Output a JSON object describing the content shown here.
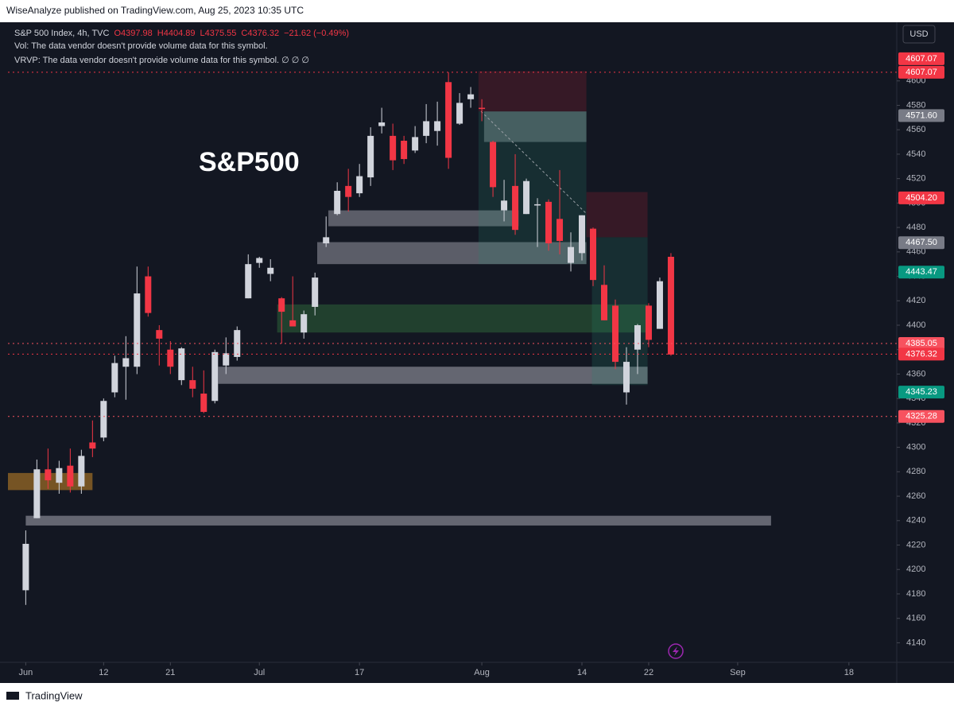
{
  "header": {
    "publisher": "WiseAnalyze published on TradingView.com, Aug 25, 2023 10:35 UTC"
  },
  "footer": {
    "brand": "TradingView"
  },
  "chart_data": {
    "type": "candlestick",
    "symbol": "S&P 500 Index, 4h, TVC",
    "ohlc_legend": [
      "O4397.98",
      "H4404.89",
      "L4375.55",
      "C4376.32",
      "−21.62 (−0.49%)"
    ],
    "info_lines": [
      "Vol: The data vendor doesn't provide volume data for this symbol.",
      "VRVP: The data vendor doesn't provide volume data for this symbol.  ∅  ∅  ∅"
    ],
    "annotation": "S&P500",
    "currency": "USD",
    "up_color": "#d1d4dc",
    "down_color": "#f23645",
    "x": [
      0,
      1,
      2,
      3,
      4,
      5,
      6,
      7,
      8,
      9,
      10,
      11,
      12,
      13,
      14,
      15,
      16,
      17,
      18,
      19,
      20,
      21,
      22,
      23,
      24,
      25,
      26,
      27,
      28,
      29,
      30,
      31,
      32,
      33,
      34,
      35,
      36,
      37,
      38,
      39,
      40,
      41,
      42,
      43,
      44,
      45,
      46,
      47,
      48,
      49,
      50,
      51,
      52,
      53,
      54,
      55,
      56,
      57,
      58
    ],
    "open": [
      4183,
      4242,
      4282,
      4271,
      4285,
      4268,
      4304,
      4308,
      4345,
      4366,
      4366,
      4440,
      4396,
      4380,
      4355,
      4355,
      4344,
      4338,
      4367,
      4374,
      4422,
      4451,
      4442,
      4422,
      4404,
      4394,
      4415,
      4467,
      4491,
      4514,
      4508,
      4521,
      4563,
      4555,
      4551,
      4543,
      4555,
      4559,
      4599,
      4565,
      4585,
      4578,
      4550,
      4494,
      4514,
      4491,
      4498,
      4501,
      4487,
      4451,
      4459,
      4479,
      4433,
      4416,
      4345,
      4380,
      4416,
      4397,
      4456
    ],
    "high": [
      4232,
      4290,
      4299,
      4289,
      4299,
      4298,
      4322,
      4340,
      4375,
      4391,
      4448,
      4448,
      4400,
      4387,
      4382,
      4366,
      4363,
      4380,
      4390,
      4399,
      4458,
      4456,
      4454,
      4423,
      4440,
      4412,
      4443,
      4489,
      4517,
      4528,
      4532,
      4562,
      4578,
      4565,
      4555,
      4563,
      4581,
      4583,
      4607,
      4590,
      4595,
      4585,
      4551,
      4519,
      4540,
      4520,
      4504,
      4503,
      4527,
      4476,
      4490,
      4480,
      4449,
      4421,
      4382,
      4401,
      4418,
      4439,
      4459
    ],
    "low": [
      4171,
      4242,
      4266,
      4262,
      4263,
      4262,
      4292,
      4305,
      4341,
      4339,
      4360,
      4407,
      4367,
      4360,
      4351,
      4341,
      4328,
      4336,
      4360,
      4371,
      4422,
      4447,
      4436,
      4385,
      4402,
      4389,
      4408,
      4464,
      4490,
      4493,
      4505,
      4514,
      4557,
      4527,
      4532,
      4541,
      4549,
      4547,
      4528,
      4564,
      4578,
      4567,
      4505,
      4485,
      4474,
      4491,
      4464,
      4461,
      4458,
      4444,
      4453,
      4432,
      4404,
      4364,
      4335,
      4360,
      4382,
      4397,
      4375
    ],
    "close": [
      4221,
      4282,
      4273,
      4283,
      4268,
      4293,
      4299,
      4338,
      4369,
      4373,
      4426,
      4410,
      4389,
      4366,
      4381,
      4348,
      4329,
      4378,
      4377,
      4396,
      4450,
      4455,
      4447,
      4411,
      4399,
      4409,
      4439,
      4472,
      4510,
      4505,
      4522,
      4555,
      4566,
      4535,
      4536,
      4554,
      4567,
      4567,
      4537,
      4582,
      4589,
      4577,
      4513,
      4502,
      4478,
      4518,
      4499,
      4467,
      4469,
      4464,
      4490,
      4437,
      4404,
      4370,
      4370,
      4400,
      4388,
      4436,
      4376
    ],
    "xlim": [
      -1.6,
      78.3
    ],
    "xticks": [
      {
        "value": 0,
        "label": "Jun"
      },
      {
        "value": 7,
        "label": "12"
      },
      {
        "value": 13,
        "label": "21"
      },
      {
        "value": 21,
        "label": "Jul"
      },
      {
        "value": 30,
        "label": "17"
      },
      {
        "value": 41,
        "label": "Aug"
      },
      {
        "value": 50,
        "label": "14"
      },
      {
        "value": 56,
        "label": "22"
      },
      {
        "value": 64,
        "label": "Sep"
      },
      {
        "value": 74,
        "label": "18"
      }
    ],
    "ylim": [
      4124,
      4648
    ],
    "yticks": [
      4140,
      4160,
      4180,
      4200,
      4220,
      4240,
      4260,
      4280,
      4300,
      4320,
      4340,
      4360,
      4380,
      4400,
      4420,
      4440,
      4460,
      4480,
      4500,
      4520,
      4540,
      4560,
      4580,
      4600
    ],
    "price_labels": [
      {
        "value": 4607.07,
        "label": "4607.07",
        "color": "#f23645",
        "line": "dotted"
      },
      {
        "value": 4607.07,
        "label": "4607.07",
        "color": "#f23645"
      },
      {
        "value": 4571.6,
        "label": "4571.60",
        "color": "#787b86"
      },
      {
        "value": 4504.2,
        "label": "4504.20",
        "color": "#f23645"
      },
      {
        "value": 4467.5,
        "label": "4467.50",
        "color": "#787b86"
      },
      {
        "value": 4443.47,
        "label": "4443.47",
        "color": "#089981"
      },
      {
        "value": 4385.05,
        "label": "4385.05",
        "color": "#f7525f",
        "line": "dotted"
      },
      {
        "value": 4376.32,
        "label": "4376.32",
        "color": "#f23645",
        "line": "dotted"
      },
      {
        "value": 4345.23,
        "label": "4345.23",
        "color": "#089981"
      },
      {
        "value": 4325.28,
        "label": "4325.28",
        "color": "#f7525f",
        "line": "dotted"
      }
    ],
    "zones": [
      {
        "x": [
          -1.6,
          6
        ],
        "y": [
          4265,
          4279
        ],
        "color": "rgba(240,160,40,0.45)"
      },
      {
        "x": [
          0,
          67
        ],
        "y": [
          4236,
          4244
        ],
        "color": "rgba(200,200,210,0.45)"
      },
      {
        "x": [
          17.3,
          55.9
        ],
        "y": [
          4352,
          4366
        ],
        "color": "rgba(200,200,210,0.45)"
      },
      {
        "x": [
          22.6,
          55.9
        ],
        "y": [
          4394,
          4417
        ],
        "color": "rgba(60,140,70,0.35)"
      },
      {
        "x": [
          26.2,
          50.4
        ],
        "y": [
          4450,
          4468
        ],
        "color": "rgba(200,200,210,0.4)"
      },
      {
        "x": [
          27.2,
          44.3
        ],
        "y": [
          4481,
          4494
        ],
        "color": "rgba(200,200,210,0.4)"
      },
      {
        "x": [
          40.7,
          50.4
        ],
        "y": [
          4575,
          4608
        ],
        "color": "rgba(120,30,45,0.35)"
      },
      {
        "x": [
          40.7,
          50.4
        ],
        "y": [
          4450,
          4575
        ],
        "color": "rgba(40,130,110,0.22)"
      },
      {
        "x": [
          41.2,
          50.4
        ],
        "y": [
          4550,
          4575
        ],
        "color": "rgba(180,210,210,0.3)"
      },
      {
        "x": [
          50.4,
          55.9
        ],
        "y": [
          4472,
          4509
        ],
        "color": "rgba(120,30,45,0.35)"
      },
      {
        "x": [
          50.9,
          55.9
        ],
        "y": [
          4351,
          4472
        ],
        "color": "rgba(40,130,110,0.22)"
      }
    ]
  }
}
